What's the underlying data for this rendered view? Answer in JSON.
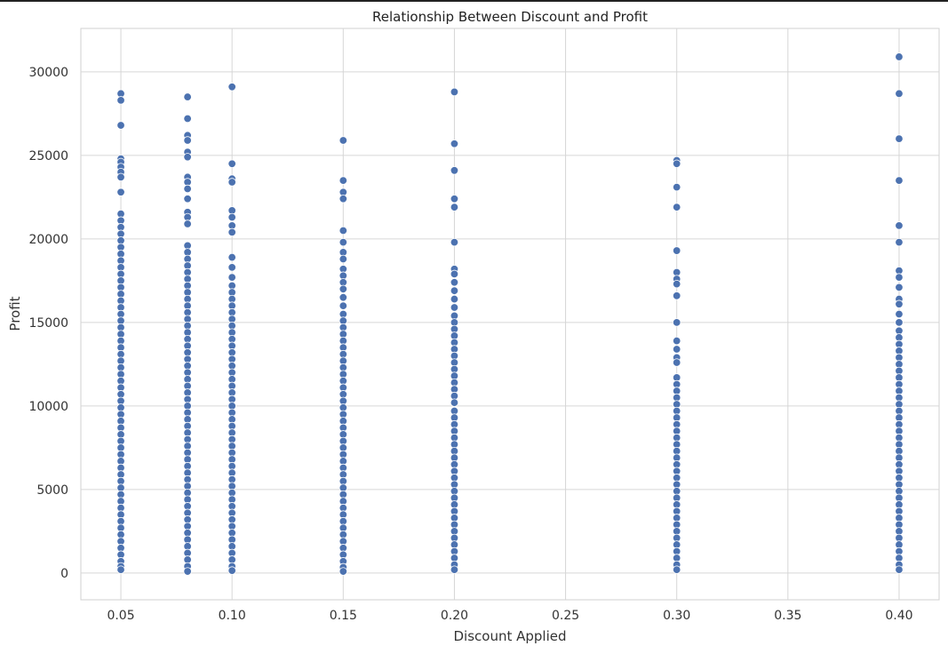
{
  "chart_data": {
    "type": "scatter",
    "title": "Relationship Between Discount and Profit",
    "xlabel": "Discount Applied",
    "ylabel": "Profit",
    "xlim": [
      0.032,
      0.418
    ],
    "ylim": [
      -1600,
      32600
    ],
    "x_ticks": [
      0.05,
      0.1,
      0.15,
      0.2,
      0.25,
      0.3,
      0.35,
      0.4
    ],
    "x_tick_labels": [
      "0.05",
      "0.10",
      "0.15",
      "0.20",
      "0.25",
      "0.30",
      "0.35",
      "0.40"
    ],
    "y_ticks": [
      0,
      5000,
      10000,
      15000,
      20000,
      25000,
      30000
    ],
    "y_tick_labels": [
      "0",
      "5000",
      "10000",
      "15000",
      "20000",
      "25000",
      "30000"
    ],
    "grid": true,
    "marker_color": "#4c72b0",
    "marker_edge_color": "#ffffff",
    "series": [
      {
        "points": [
          {
            "x": 0.05,
            "values": [
              28700,
              28300,
              26800,
              24800,
              24600,
              24300,
              24000,
              23700,
              22800,
              21500,
              21100,
              20700,
              20300,
              19900,
              19500,
              19100,
              18700,
              18300,
              17900,
              17500,
              17100,
              16700,
              16300,
              15900,
              15500,
              15100,
              14700,
              14300,
              13900,
              13500,
              13100,
              12700,
              12300,
              11900,
              11500,
              11100,
              10700,
              10300,
              9900,
              9500,
              9100,
              8700,
              8300,
              7900,
              7500,
              7100,
              6700,
              6300,
              5900,
              5500,
              5100,
              4700,
              4300,
              3900,
              3500,
              3100,
              2700,
              2300,
              1900,
              1500,
              1100,
              700,
              400,
              200
            ]
          },
          {
            "x": 0.08,
            "values": [
              28500,
              27200,
              26200,
              25900,
              25200,
              24900,
              23700,
              23400,
              23000,
              22400,
              21600,
              21300,
              20900,
              19600,
              19200,
              18800,
              18400,
              18000,
              17600,
              17200,
              16800,
              16400,
              16000,
              15600,
              15200,
              14800,
              14400,
              14000,
              13600,
              13200,
              12800,
              12400,
              12000,
              11600,
              11200,
              10800,
              10400,
              10000,
              9600,
              9200,
              8800,
              8400,
              8000,
              7600,
              7200,
              6800,
              6400,
              6000,
              5600,
              5200,
              4800,
              4400,
              4000,
              3600,
              3200,
              2800,
              2400,
              2000,
              1600,
              1200,
              800,
              400,
              100
            ]
          },
          {
            "x": 0.1,
            "values": [
              29100,
              24500,
              23600,
              23400,
              21700,
              21300,
              20800,
              20400,
              18900,
              18300,
              17700,
              17200,
              16800,
              16400,
              16000,
              15600,
              15200,
              14800,
              14400,
              14000,
              13600,
              13200,
              12800,
              12400,
              12000,
              11600,
              11200,
              10800,
              10400,
              10000,
              9600,
              9200,
              8800,
              8400,
              8000,
              7600,
              7200,
              6800,
              6400,
              6000,
              5600,
              5200,
              4800,
              4400,
              4000,
              3600,
              3200,
              2800,
              2400,
              2000,
              1600,
              1200,
              800,
              400,
              150
            ]
          },
          {
            "x": 0.15,
            "values": [
              25900,
              23500,
              22800,
              22400,
              20500,
              19800,
              19200,
              18800,
              18200,
              17800,
              17400,
              17000,
              16500,
              16000,
              15500,
              15100,
              14700,
              14300,
              13900,
              13500,
              13100,
              12700,
              12300,
              11900,
              11500,
              11100,
              10700,
              10300,
              9900,
              9500,
              9100,
              8700,
              8300,
              7900,
              7500,
              7100,
              6700,
              6300,
              5900,
              5500,
              5100,
              4700,
              4300,
              3900,
              3500,
              3100,
              2700,
              2300,
              1900,
              1500,
              1100,
              700,
              350,
              100
            ]
          },
          {
            "x": 0.2,
            "values": [
              28800,
              25700,
              24100,
              22400,
              21900,
              19800,
              18200,
              17900,
              17400,
              16900,
              16400,
              15900,
              15400,
              15000,
              14600,
              14200,
              13800,
              13400,
              13000,
              12600,
              12200,
              11800,
              11400,
              11000,
              10600,
              10200,
              9700,
              9300,
              8900,
              8500,
              8100,
              7700,
              7300,
              6900,
              6500,
              6100,
              5700,
              5300,
              4900,
              4500,
              4100,
              3700,
              3300,
              2900,
              2500,
              2100,
              1700,
              1300,
              900,
              500,
              200
            ]
          },
          {
            "x": 0.3,
            "values": [
              24700,
              24500,
              23100,
              21900,
              19300,
              18000,
              17600,
              17300,
              16600,
              15000,
              13900,
              13400,
              12900,
              12600,
              11700,
              11300,
              10900,
              10500,
              10100,
              9700,
              9300,
              8900,
              8500,
              8100,
              7700,
              7300,
              6900,
              6500,
              6100,
              5700,
              5300,
              4900,
              4500,
              4100,
              3700,
              3300,
              2900,
              2500,
              2100,
              1700,
              1300,
              900,
              500,
              200
            ]
          },
          {
            "x": 0.4,
            "values": [
              30900,
              28700,
              26000,
              23500,
              20800,
              19800,
              18100,
              17700,
              17100,
              16400,
              16100,
              15500,
              15000,
              14500,
              14100,
              13700,
              13300,
              12900,
              12500,
              12100,
              11700,
              11300,
              10900,
              10500,
              10100,
              9700,
              9300,
              8900,
              8500,
              8100,
              7700,
              7300,
              6900,
              6500,
              6100,
              5700,
              5300,
              4900,
              4500,
              4100,
              3700,
              3300,
              2900,
              2500,
              2100,
              1700,
              1300,
              900,
              500,
              200
            ]
          }
        ]
      }
    ]
  }
}
